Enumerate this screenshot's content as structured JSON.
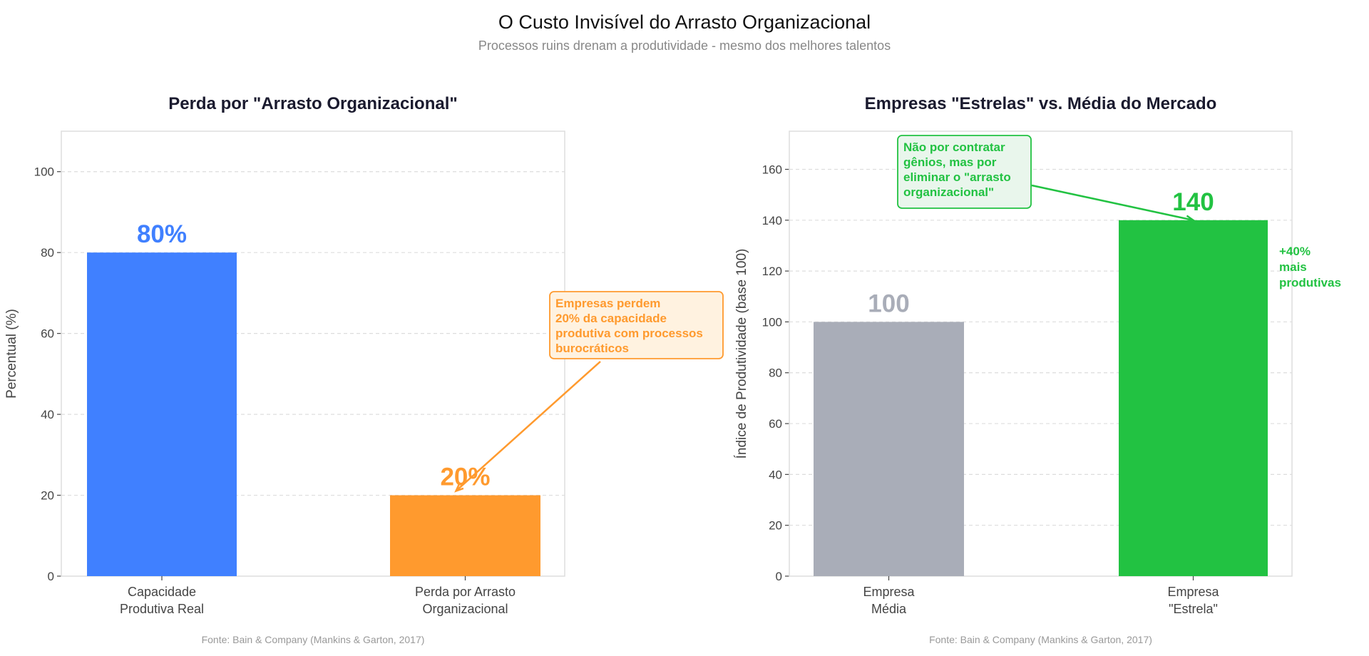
{
  "title": "O Custo Invisível do Arrasto Organizacional",
  "subtitle": "Processos ruins drenam a produtividade - mesmo dos melhores talentos",
  "chart_data": [
    {
      "type": "bar",
      "title": "Perda por \"Arrasto Organizacional\"",
      "xlabel": "",
      "ylabel": "Percentual (%)",
      "categories": [
        [
          "Capacidade",
          "Produtiva Real"
        ],
        [
          "Perda por Arrasto",
          "Organizacional"
        ]
      ],
      "values": [
        80,
        20
      ],
      "value_labels": [
        "80%",
        "20%"
      ],
      "colors": [
        "#4080ff",
        "#ff9a2e"
      ],
      "ylim": [
        0,
        110
      ],
      "yticks": [
        0,
        20,
        40,
        60,
        80,
        100
      ],
      "grid": true,
      "annotation": {
        "lines": [
          "Empresas perdem",
          "20% da capacidade",
          "produtiva com processos",
          "burocráticos"
        ],
        "color": "#ff9a2e",
        "target_category": 1,
        "target_value": 20
      },
      "source": "Fonte: Bain & Company (Mankins & Garton, 2017)"
    },
    {
      "type": "bar",
      "title": "Empresas \"Estrelas\" vs. Média do Mercado",
      "xlabel": "",
      "ylabel": "Índice de Produtividade (base 100)",
      "categories": [
        [
          "Empresa",
          "Média"
        ],
        [
          "Empresa",
          "\"Estrela\""
        ]
      ],
      "values": [
        100,
        140
      ],
      "value_labels": [
        "100",
        "140"
      ],
      "colors": [
        "#a9adb8",
        "#22c242"
      ],
      "ylim": [
        0,
        175
      ],
      "yticks": [
        0,
        20,
        40,
        60,
        80,
        100,
        120,
        140,
        160
      ],
      "grid": true,
      "annotation": {
        "lines": [
          "Não por contratar",
          "gênios, mas por",
          "eliminar o \"arrasto",
          "organizacional\""
        ],
        "color": "#22c242",
        "target_category": 1,
        "target_value": 140
      },
      "side_note": [
        "+40%",
        "mais",
        "produtivas"
      ],
      "source": "Fonte: Bain & Company (Mankins & Garton, 2017)"
    }
  ]
}
